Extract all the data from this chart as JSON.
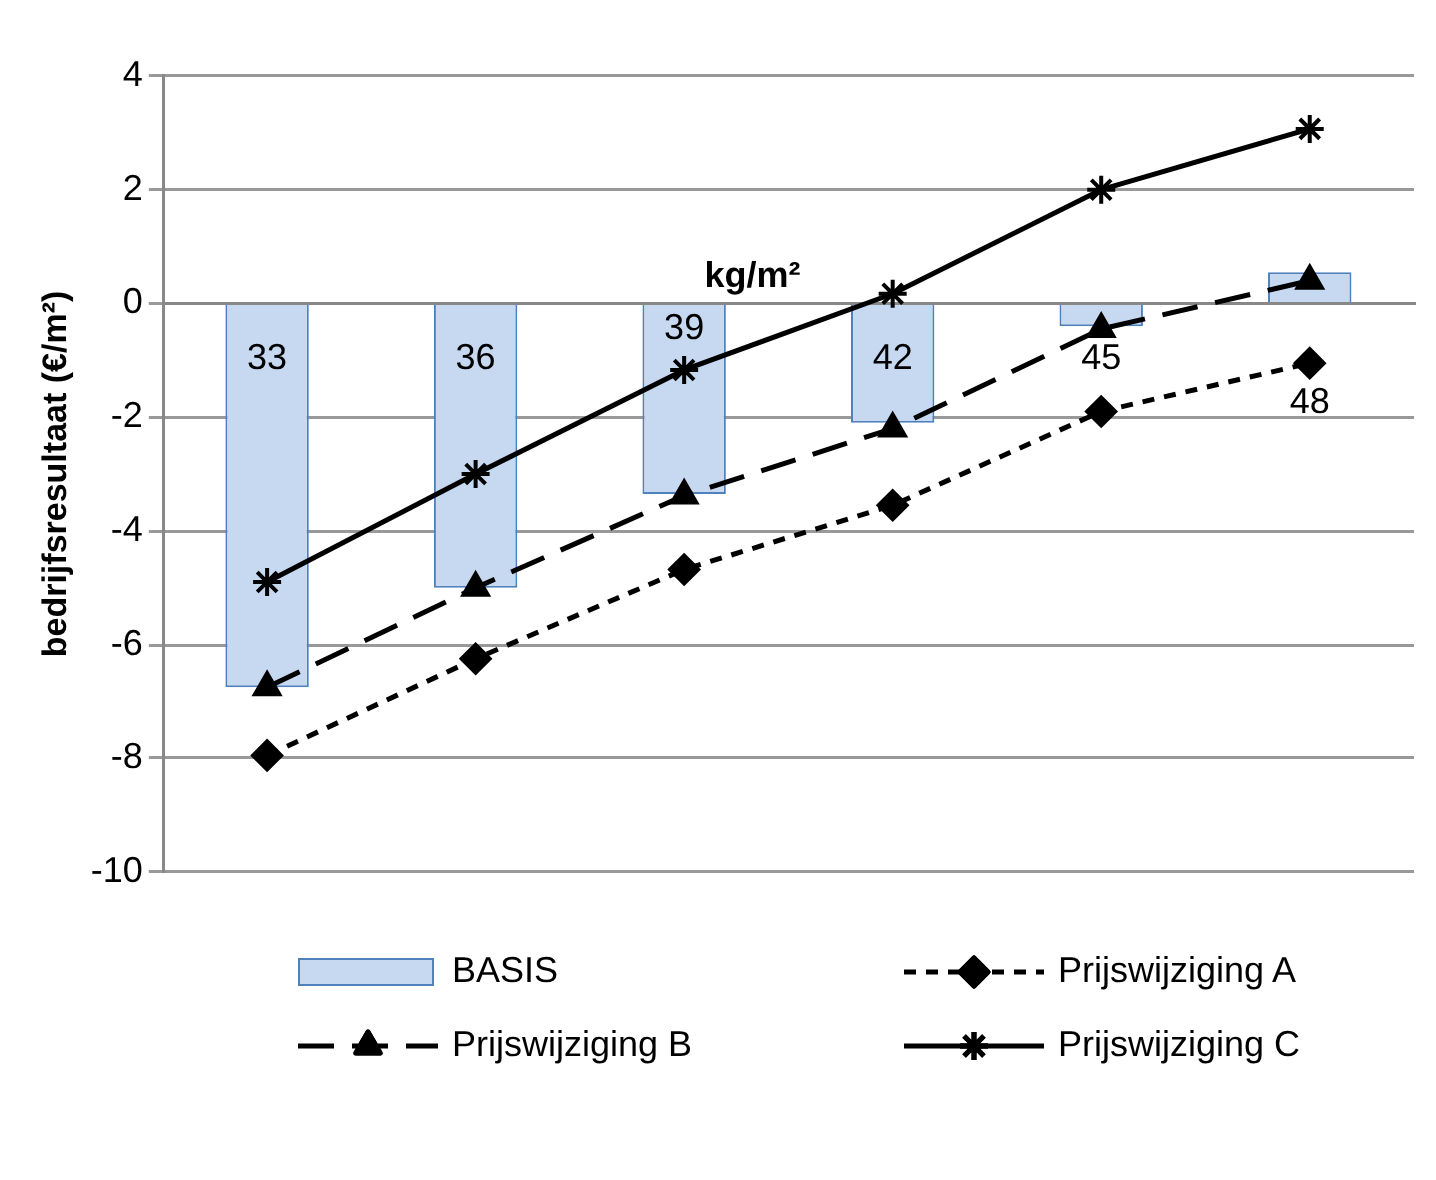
{
  "chart_data": {
    "type": "bar",
    "xlabel": "kg/m²",
    "ylabel": "bedrijfsresultaat (€/m²)",
    "categories": [
      "33",
      "36",
      "39",
      "42",
      "45",
      "48"
    ],
    "series": [
      {
        "name": "BASIS",
        "color": "#c6d9f1",
        "values": [
          -6.75,
          -5.0,
          -3.35,
          -2.1,
          -0.4,
          0.55
        ]
      },
      {
        "name": "Prijswijziging A",
        "type": "line",
        "color": "#000000",
        "marker": "diamond",
        "line_style": "dotted",
        "values": [
          -7.95,
          -6.25,
          -4.68,
          -3.55,
          -1.9,
          -1.05
        ]
      },
      {
        "name": "Prijswijziging B",
        "type": "line",
        "color": "#000000",
        "marker": "triangle",
        "line_style": "dashed",
        "values": [
          -6.75,
          -5.0,
          -3.38,
          -2.2,
          -0.45,
          0.4
        ]
      },
      {
        "name": "Prijswijziging C",
        "type": "line",
        "color": "#000000",
        "marker": "cross",
        "line_style": "solid",
        "values": [
          -4.9,
          -3.0,
          -1.17,
          0.17,
          2.0,
          3.07
        ]
      }
    ],
    "ylim": [
      -10,
      4
    ],
    "yticks": [
      -10,
      -8,
      -6,
      -4,
      -2,
      0,
      2,
      4
    ],
    "grid": "y",
    "legend": "bottom"
  }
}
